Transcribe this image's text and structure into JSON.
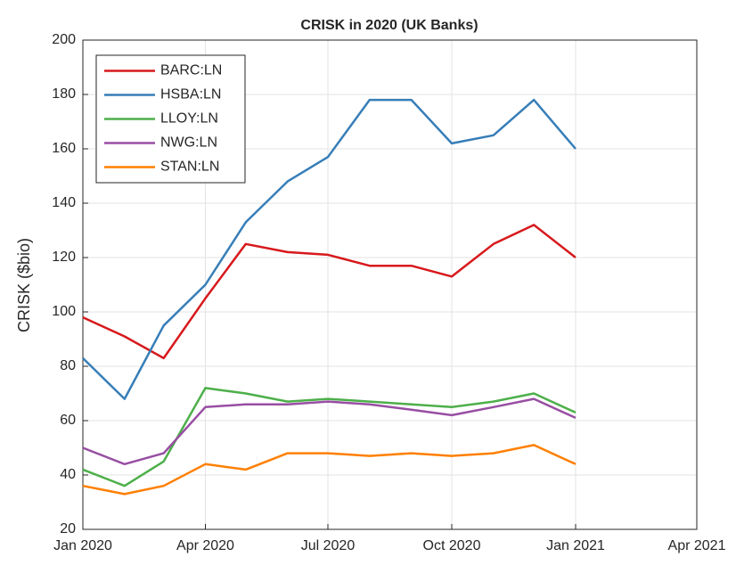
{
  "chart_data": {
    "type": "line",
    "title": "CRISK in 2020 (UK Banks)",
    "y_label": "CRISK ($bio)",
    "x": [
      "2020-01",
      "2020-02",
      "2020-03",
      "2020-04",
      "2020-05",
      "2020-06",
      "2020-07",
      "2020-08",
      "2020-09",
      "2020-10",
      "2020-11",
      "2020-12",
      "2021-01"
    ],
    "series": [
      {
        "name": "BARC:LN",
        "color": "#d7191c",
        "values": [
          98,
          91,
          83,
          105,
          125,
          122,
          121,
          117,
          117,
          113,
          125,
          132,
          120
        ]
      },
      {
        "name": "HSBA:LN",
        "color": "#377eb8",
        "values": [
          83,
          68,
          95,
          110,
          133,
          148,
          157,
          178,
          178,
          162,
          165,
          178,
          160
        ]
      },
      {
        "name": "LLOY:LN",
        "color": "#4daf4a",
        "values": [
          42,
          36,
          45,
          72,
          70,
          67,
          68,
          67,
          66,
          65,
          67,
          70,
          63
        ]
      },
      {
        "name": "NWG:LN",
        "color": "#984ea3",
        "values": [
          50,
          44,
          48,
          65,
          66,
          66,
          67,
          66,
          64,
          62,
          65,
          68,
          61
        ]
      },
      {
        "name": "STAN:LN",
        "color": "#ff7f00",
        "values": [
          36,
          33,
          36,
          44,
          42,
          48,
          48,
          47,
          48,
          47,
          48,
          51,
          44
        ]
      }
    ],
    "xlim": [
      "2020-01",
      "2021-04"
    ],
    "xticks": [
      {
        "value": "2020-01",
        "label": "Jan 2020"
      },
      {
        "value": "2020-04",
        "label": "Apr 2020"
      },
      {
        "value": "2020-07",
        "label": "Jul 2020"
      },
      {
        "value": "2020-10",
        "label": "Oct 2020"
      },
      {
        "value": "2021-01",
        "label": "Jan 2021"
      },
      {
        "value": "2021-04",
        "label": "Apr 2021"
      }
    ],
    "ylim": [
      20,
      200
    ],
    "yticks": [
      20,
      40,
      60,
      80,
      100,
      120,
      140,
      160,
      180,
      200
    ],
    "grid": true,
    "legend": "upper left"
  }
}
